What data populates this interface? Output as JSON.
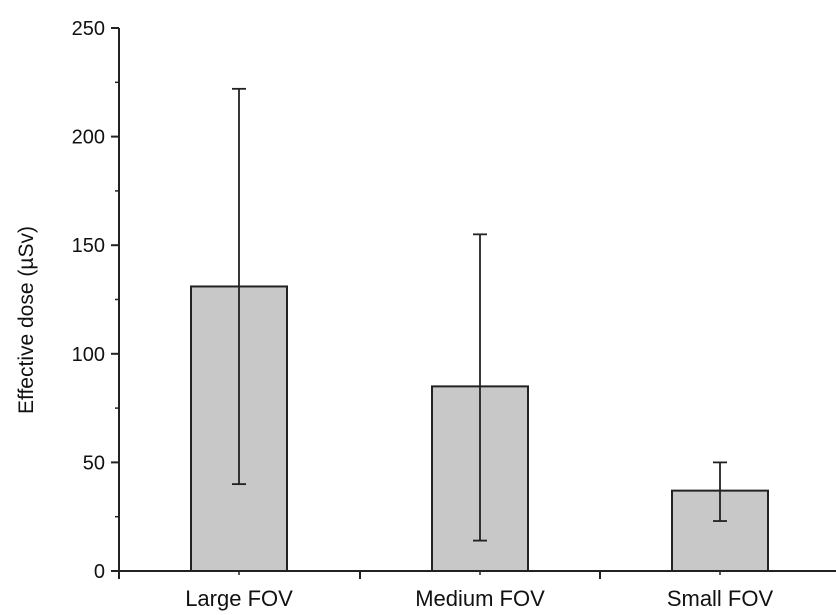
{
  "chart_data": {
    "type": "bar",
    "title": "",
    "xlabel": "",
    "ylabel": "Effective dose (µSv)",
    "categories": [
      "Large FOV",
      "Medium FOV",
      "Small FOV"
    ],
    "values": [
      131,
      85,
      37
    ],
    "error_low": [
      40,
      14,
      23
    ],
    "error_high": [
      222,
      155,
      50
    ],
    "ylim": [
      0,
      250
    ],
    "yticks": [
      0,
      50,
      100,
      150,
      200,
      250
    ],
    "ytick_labels": [
      "0",
      "50",
      "100",
      "150",
      "200",
      "250"
    ],
    "grid": false,
    "legend": "none",
    "bar_color": "#c8c8c8",
    "bar_edge_color": "#222222"
  }
}
